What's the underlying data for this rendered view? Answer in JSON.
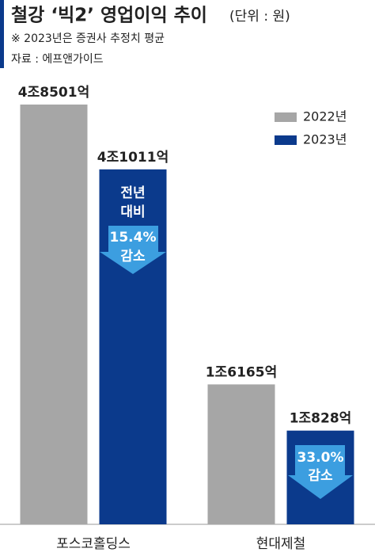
{
  "chart_data": {
    "type": "bar",
    "title": "철강 ‘빅2’ 영업이익 추이",
    "subtitle": "(단위 : 원)",
    "notes": [
      "※ 2023년은 증권사 추정치 평균",
      "자료 : 에프앤가이드"
    ],
    "categories": [
      "포스코홀딩스",
      "현대제철"
    ],
    "series": [
      {
        "name": "2022년",
        "color": "#a6a6a6",
        "values": [
          48501,
          16165
        ],
        "value_labels": [
          "4조8501억",
          "1조6165억"
        ]
      },
      {
        "name": "2023년",
        "color": "#0b3a8c",
        "values": [
          41011,
          10828
        ],
        "value_labels": [
          "4조1011억",
          "1조828억"
        ]
      }
    ],
    "annotations": [
      {
        "lines": [
          "전년",
          "대비",
          "15.4%",
          "감소"
        ]
      },
      {
        "lines": [
          "33.0%",
          "감소"
        ]
      }
    ]
  }
}
